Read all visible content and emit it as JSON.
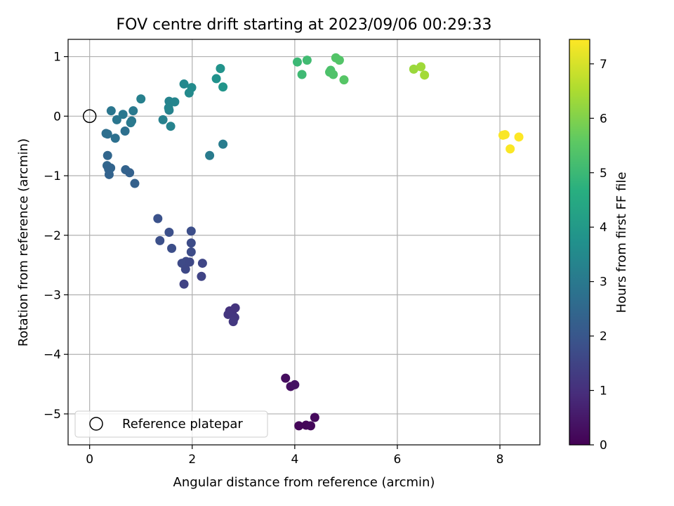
{
  "chart_data": {
    "type": "scatter",
    "title": "FOV centre drift starting at 2023/09/06 00:29:33",
    "xlabel": "Angular distance from reference (arcmin)",
    "ylabel": "Rotation from reference (arcmin)",
    "xlim": [
      -0.42,
      8.78
    ],
    "ylim": [
      -5.52,
      1.29
    ],
    "x_ticks": [
      0,
      2,
      4,
      6,
      8
    ],
    "y_ticks": [
      1,
      0,
      -1,
      -2,
      -3,
      -4,
      -5
    ],
    "x_tick_labels": [
      "0",
      "2",
      "4",
      "6",
      "8"
    ],
    "y_tick_labels": [
      "1",
      "0",
      "−1",
      "−2",
      "−3",
      "−4",
      "−5"
    ],
    "grid": true,
    "colormap": "viridis",
    "colorbar": {
      "label": "Hours from first FF file",
      "min": 0,
      "max": 7.45,
      "ticks": [
        0,
        1,
        2,
        3,
        4,
        5,
        6,
        7
      ],
      "tick_labels": [
        "0",
        "1",
        "2",
        "3",
        "4",
        "5",
        "6",
        "7"
      ]
    },
    "legend": {
      "position": "lower-left",
      "entries": [
        "Reference platepar"
      ]
    },
    "reference_point": {
      "x": 0,
      "y": 0
    },
    "points": [
      {
        "x": 4.08,
        "y": -5.2,
        "h": 0.1
      },
      {
        "x": 4.22,
        "y": -5.19,
        "h": 0.1
      },
      {
        "x": 4.31,
        "y": -5.2,
        "h": 0.15
      },
      {
        "x": 4.39,
        "y": -5.06,
        "h": 0.2
      },
      {
        "x": 3.82,
        "y": -4.4,
        "h": 0.25
      },
      {
        "x": 3.92,
        "y": -4.54,
        "h": 0.3
      },
      {
        "x": 4.0,
        "y": -4.51,
        "h": 0.35
      },
      {
        "x": 2.73,
        "y": -3.27,
        "h": 1.05
      },
      {
        "x": 2.78,
        "y": -3.32,
        "h": 1.1
      },
      {
        "x": 2.84,
        "y": -3.22,
        "h": 1.1
      },
      {
        "x": 2.7,
        "y": -3.33,
        "h": 1.15
      },
      {
        "x": 2.83,
        "y": -3.38,
        "h": 1.15
      },
      {
        "x": 2.8,
        "y": -3.45,
        "h": 1.2
      },
      {
        "x": 1.33,
        "y": -1.72,
        "h": 1.85
      },
      {
        "x": 1.37,
        "y": -2.09,
        "h": 1.8
      },
      {
        "x": 1.55,
        "y": -1.95,
        "h": 1.8
      },
      {
        "x": 1.6,
        "y": -2.22,
        "h": 1.75
      },
      {
        "x": 1.98,
        "y": -1.93,
        "h": 1.75
      },
      {
        "x": 1.98,
        "y": -2.13,
        "h": 1.7
      },
      {
        "x": 1.98,
        "y": -2.28,
        "h": 1.7
      },
      {
        "x": 1.88,
        "y": -2.44,
        "h": 1.65
      },
      {
        "x": 1.8,
        "y": -2.47,
        "h": 1.65
      },
      {
        "x": 1.95,
        "y": -2.45,
        "h": 1.6
      },
      {
        "x": 1.87,
        "y": -2.57,
        "h": 1.6
      },
      {
        "x": 2.2,
        "y": -2.47,
        "h": 1.55
      },
      {
        "x": 2.18,
        "y": -2.69,
        "h": 1.5
      },
      {
        "x": 1.84,
        "y": -2.82,
        "h": 1.45
      },
      {
        "x": 0.35,
        "y": -0.66,
        "h": 2.45
      },
      {
        "x": 0.34,
        "y": -0.83,
        "h": 2.45
      },
      {
        "x": 0.41,
        "y": -0.87,
        "h": 2.4
      },
      {
        "x": 0.37,
        "y": -0.89,
        "h": 2.4
      },
      {
        "x": 0.38,
        "y": -0.98,
        "h": 2.35
      },
      {
        "x": 0.7,
        "y": -0.9,
        "h": 2.35
      },
      {
        "x": 0.78,
        "y": -0.95,
        "h": 2.3
      },
      {
        "x": 0.88,
        "y": -1.13,
        "h": 2.3
      },
      {
        "x": 0.32,
        "y": -0.29,
        "h": 2.7
      },
      {
        "x": 0.35,
        "y": -0.3,
        "h": 2.7
      },
      {
        "x": 0.5,
        "y": -0.37,
        "h": 2.75
      },
      {
        "x": 0.69,
        "y": -0.25,
        "h": 2.75
      },
      {
        "x": 0.42,
        "y": 0.09,
        "h": 2.9
      },
      {
        "x": 0.53,
        "y": -0.06,
        "h": 2.9
      },
      {
        "x": 0.65,
        "y": 0.03,
        "h": 2.95
      },
      {
        "x": 0.82,
        "y": -0.08,
        "h": 2.95
      },
      {
        "x": 0.85,
        "y": 0.09,
        "h": 3.0
      },
      {
        "x": 0.8,
        "y": -0.11,
        "h": 3.0
      },
      {
        "x": 2.34,
        "y": -0.66,
        "h": 3.05
      },
      {
        "x": 2.6,
        "y": -0.47,
        "h": 3.1
      },
      {
        "x": 1.0,
        "y": 0.29,
        "h": 3.2
      },
      {
        "x": 1.43,
        "y": -0.06,
        "h": 3.25
      },
      {
        "x": 1.55,
        "y": 0.1,
        "h": 3.25
      },
      {
        "x": 1.55,
        "y": 0.25,
        "h": 3.3
      },
      {
        "x": 1.58,
        "y": -0.17,
        "h": 3.3
      },
      {
        "x": 1.66,
        "y": 0.24,
        "h": 3.35
      },
      {
        "x": 1.54,
        "y": 0.14,
        "h": 3.35
      },
      {
        "x": 1.84,
        "y": 0.54,
        "h": 3.45
      },
      {
        "x": 1.94,
        "y": 0.39,
        "h": 3.5
      },
      {
        "x": 1.99,
        "y": 0.48,
        "h": 3.55
      },
      {
        "x": 2.47,
        "y": 0.63,
        "h": 3.75
      },
      {
        "x": 2.55,
        "y": 0.8,
        "h": 3.8
      },
      {
        "x": 2.6,
        "y": 0.49,
        "h": 3.85
      },
      {
        "x": 4.05,
        "y": 0.91,
        "h": 5.0
      },
      {
        "x": 4.14,
        "y": 0.7,
        "h": 5.05
      },
      {
        "x": 4.24,
        "y": 0.94,
        "h": 5.1
      },
      {
        "x": 4.7,
        "y": 0.77,
        "h": 5.3
      },
      {
        "x": 4.68,
        "y": 0.74,
        "h": 5.3
      },
      {
        "x": 4.75,
        "y": 0.7,
        "h": 5.35
      },
      {
        "x": 4.8,
        "y": 0.98,
        "h": 5.4
      },
      {
        "x": 4.87,
        "y": 0.94,
        "h": 5.4
      },
      {
        "x": 4.96,
        "y": 0.61,
        "h": 5.45
      },
      {
        "x": 6.32,
        "y": 0.79,
        "h": 6.3
      },
      {
        "x": 6.46,
        "y": 0.83,
        "h": 6.35
      },
      {
        "x": 6.53,
        "y": 0.69,
        "h": 6.4
      },
      {
        "x": 8.06,
        "y": -0.32,
        "h": 7.4
      },
      {
        "x": 8.1,
        "y": -0.31,
        "h": 7.4
      },
      {
        "x": 8.2,
        "y": -0.55,
        "h": 7.42
      },
      {
        "x": 8.37,
        "y": -0.35,
        "h": 7.45
      }
    ]
  }
}
